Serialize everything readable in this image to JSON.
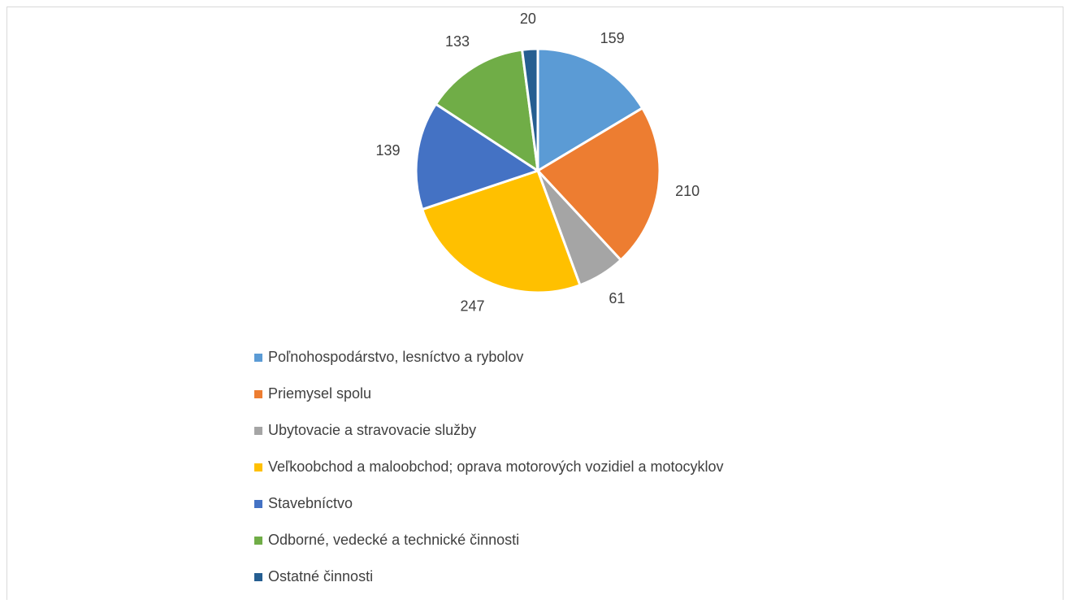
{
  "chart_data": {
    "type": "pie",
    "categories": [
      "Poľnohospodárstvo, lesníctvo a rybolov",
      "Priemysel spolu",
      "Ubytovacie a stravovacie služby",
      "Veľkoobchod a maloobchod; oprava motorových vozidiel a motocyklov",
      "Stavebníctvo",
      "Odborné, vedecké a technické činnosti",
      "Ostatné činnosti"
    ],
    "values": [
      159,
      210,
      61,
      247,
      139,
      133,
      20
    ],
    "colors": [
      "#5b9bd5",
      "#ed7d31",
      "#a5a5a5",
      "#ffc000",
      "#4472c4",
      "#70ad47",
      "#255e91"
    ],
    "legend": "bottom"
  }
}
